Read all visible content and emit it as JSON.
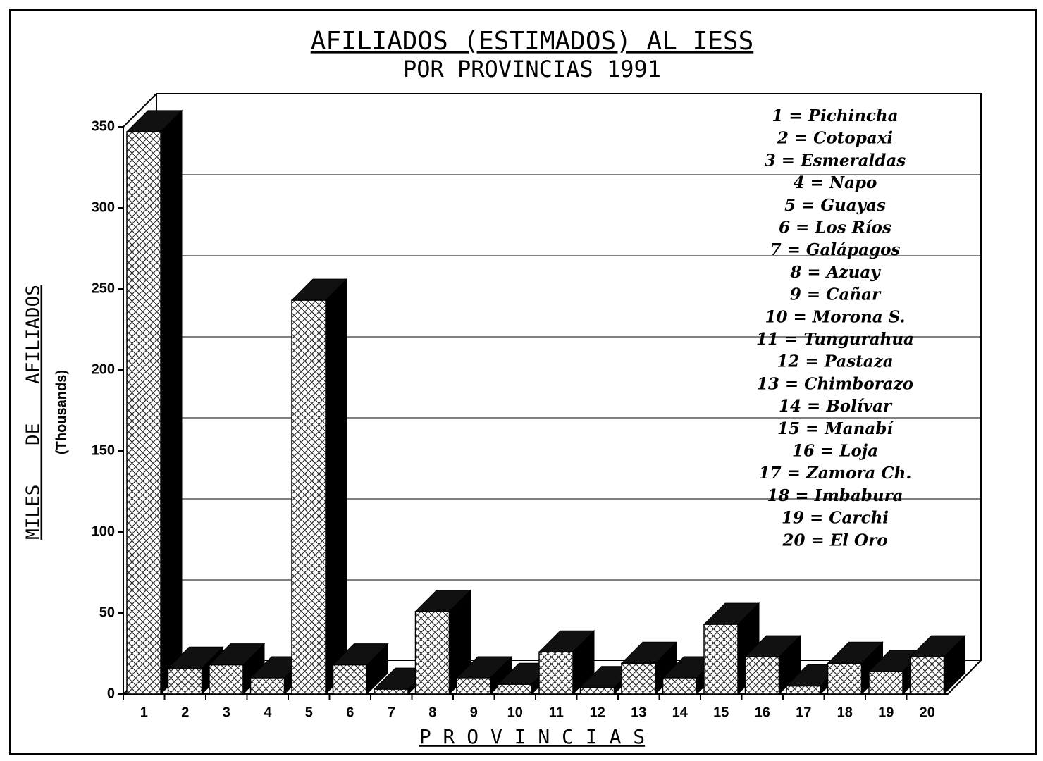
{
  "chart_data": {
    "type": "bar3d",
    "title": "AFILIADOS (ESTIMADOS) AL IESS",
    "subtitle": "POR PROVINCIAS 1991",
    "y_label": "MILES DE AFILIADOS",
    "y_unit_label": "(Thousands)",
    "x_label": "P R O V I N C I A S",
    "categories": [
      "1",
      "2",
      "3",
      "4",
      "5",
      "6",
      "7",
      "8",
      "9",
      "10",
      "11",
      "12",
      "13",
      "14",
      "15",
      "16",
      "17",
      "18",
      "19",
      "20"
    ],
    "values": [
      347,
      16,
      18,
      10,
      243,
      18,
      3,
      51,
      10,
      6,
      26,
      4,
      19,
      10,
      43,
      23,
      5,
      19,
      14,
      23
    ],
    "legend": [
      "1 = Pichincha",
      "2 = Cotopaxi",
      "3 = Esmeraldas",
      "4 = Napo",
      "5 = Guayas",
      "6 = Los Ríos",
      "7 = Galápagos",
      "8 = Azuay",
      "9 = Cañar",
      "10 = Morona S.",
      "11 = Tungurahua",
      "12 = Pastaza",
      "13 = Chimborazo",
      "14 = Bolívar",
      "15 = Manabí",
      "16 = Loja",
      "17 = Zamora Ch.",
      "18 = Imbabura",
      "19 = Carchi",
      "20 = El Oro"
    ],
    "ylim": [
      0,
      350
    ],
    "yticks": [
      0,
      50,
      100,
      150,
      200,
      250,
      300,
      350
    ],
    "grid": true
  }
}
